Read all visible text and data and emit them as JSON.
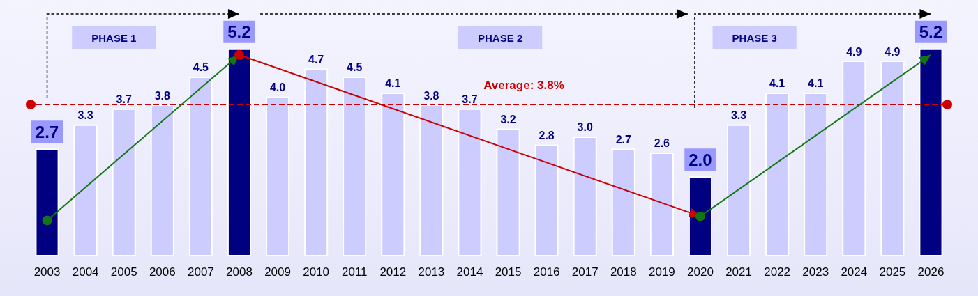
{
  "chart_data": {
    "type": "bar",
    "categories": [
      "2003",
      "2004",
      "2005",
      "2006",
      "2007",
      "2008",
      "2009",
      "2010",
      "2011",
      "2012",
      "2013",
      "2014",
      "2015",
      "2016",
      "2017",
      "2018",
      "2019",
      "2020",
      "2021",
      "2022",
      "2023",
      "2024",
      "2025",
      "2026"
    ],
    "values": [
      2.7,
      3.3,
      3.7,
      3.8,
      4.5,
      5.2,
      4.0,
      4.7,
      4.5,
      4.1,
      3.8,
      3.7,
      3.2,
      2.8,
      3.0,
      2.7,
      2.6,
      2.0,
      3.3,
      4.1,
      4.1,
      4.9,
      4.9,
      5.2
    ],
    "colors": [
      "#000080",
      "#ccccff",
      "#ccccff",
      "#ccccff",
      "#ccccff",
      "#000080",
      "#ccccff",
      "#ccccff",
      "#ccccff",
      "#ccccff",
      "#ccccff",
      "#ccccff",
      "#ccccff",
      "#ccccff",
      "#ccccff",
      "#ccccff",
      "#ccccff",
      "#000080",
      "#ccccff",
      "#ccccff",
      "#ccccff",
      "#ccccff",
      "#ccccff",
      "#000080"
    ],
    "value_labels": [
      "2.7",
      "3.3",
      "3.7",
      "3.8",
      "4.5",
      "5.2",
      "4.0",
      "4.7",
      "4.5",
      "4.1",
      "3.8",
      "3.7",
      "3.2",
      "2.8",
      "3.0",
      "2.7",
      "2.6",
      "2.0",
      "3.3",
      "4.1",
      "4.1",
      "4.9",
      "4.9",
      "5.2"
    ],
    "ref_lines": [
      {
        "axis": "y",
        "value": 3.8,
        "label": "Average: 3.8%",
        "color": "#cc0000",
        "line_style": "dashed"
      }
    ],
    "annotations": [
      "PHASE 1",
      "PHASE 2",
      "PHASE 3"
    ]
  }
}
